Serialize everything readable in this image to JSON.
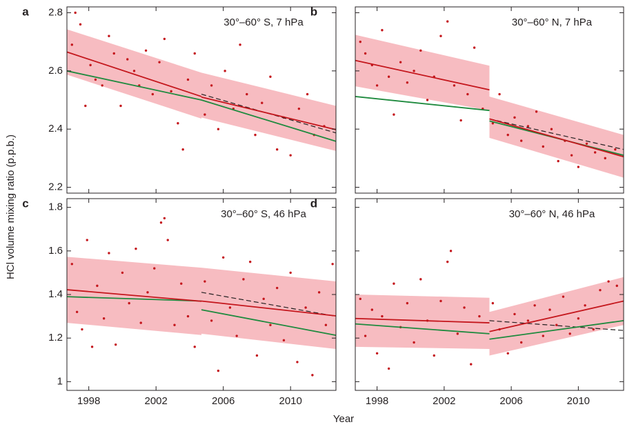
{
  "y_label": "HCl volume mixing ratio (p.p.b.)",
  "x_label": "Year",
  "chart_data": [
    {
      "type": "scatter",
      "panel": "a",
      "title": "30°–60° S, 7 hPa",
      "xlim": [
        1996.7,
        2012.7
      ],
      "xticks": [
        1998,
        2002,
        2006,
        2010
      ],
      "show_xtick_labels": false,
      "ylim": [
        2.18,
        2.82
      ],
      "yticks": [
        2.2,
        2.4,
        2.6,
        2.8
      ],
      "show_ytick_labels": true,
      "point_color": "#c4161c",
      "trend_color": "#c4161c",
      "model_color": "#1e8a3e",
      "band_color": "#f7bcc1",
      "points": {
        "x": [
          1997.0,
          1997.2,
          1997.5,
          1997.8,
          1998.1,
          1998.4,
          1998.8,
          1999.2,
          1999.5,
          1999.9,
          2000.3,
          2000.7,
          2001.0,
          2001.4,
          2001.8,
          2002.2,
          2002.5,
          2002.9,
          2003.3,
          2003.6,
          2003.9,
          2004.3,
          2004.9,
          2005.3,
          2005.7,
          2006.1,
          2006.6,
          2007.0,
          2007.4,
          2007.9,
          2008.3,
          2008.8,
          2009.2,
          2009.6,
          2010.0,
          2010.5,
          2011.0,
          2011.4,
          2012.0
        ],
        "y": [
          2.69,
          2.8,
          2.76,
          2.48,
          2.62,
          2.57,
          2.55,
          2.72,
          2.66,
          2.48,
          2.64,
          2.6,
          2.55,
          2.67,
          2.52,
          2.63,
          2.71,
          2.53,
          2.42,
          2.33,
          2.57,
          2.66,
          2.45,
          2.55,
          2.4,
          2.6,
          2.47,
          2.69,
          2.52,
          2.38,
          2.49,
          2.58,
          2.33,
          2.44,
          2.31,
          2.47,
          2.52,
          2.38,
          2.41
        ]
      },
      "band": [
        {
          "x": [
            1996.7,
            2004.7
          ],
          "high": [
            2.743,
            2.594
          ],
          "low": [
            2.587,
            2.436
          ]
        },
        {
          "x": [
            2004.7,
            2012.7
          ],
          "high": [
            2.594,
            2.48
          ],
          "low": [
            2.44,
            2.325
          ]
        }
      ],
      "trend": [
        {
          "x": [
            1996.7,
            2004.7
          ],
          "values": [
            2.665,
            2.512
          ]
        },
        {
          "x": [
            2004.7,
            2012.7
          ],
          "values": [
            2.51,
            2.398
          ]
        }
      ],
      "model": [
        {
          "x": [
            1996.7,
            2004.7,
            2012.7
          ],
          "values": [
            2.6,
            2.5,
            2.358
          ]
        }
      ],
      "dashed": {
        "x": [
          2004.7,
          2012.7
        ],
        "values": [
          2.52,
          2.387
        ]
      }
    },
    {
      "type": "scatter",
      "panel": "b",
      "title": "30°–60° N, 7 hPa",
      "xlim": [
        1996.7,
        2012.7
      ],
      "xticks": [
        1998,
        2002,
        2006,
        2010
      ],
      "show_xtick_labels": false,
      "ylim": [
        2.18,
        2.82
      ],
      "yticks": [
        2.2,
        2.4,
        2.6,
        2.8
      ],
      "show_ytick_labels": false,
      "point_color": "#c4161c",
      "trend_color": "#c4161c",
      "model_color": "#1e8a3e",
      "band_color": "#f7bcc1",
      "points": {
        "x": [
          1997.0,
          1997.3,
          1997.7,
          1998.0,
          1998.3,
          1998.7,
          1999.0,
          1999.4,
          1999.8,
          2000.2,
          2000.6,
          2001.0,
          2001.4,
          2001.8,
          2002.2,
          2002.6,
          2003.0,
          2003.4,
          2003.8,
          2004.3,
          2004.9,
          2005.3,
          2005.8,
          2006.2,
          2006.6,
          2007.0,
          2007.5,
          2007.9,
          2008.4,
          2008.8,
          2009.2,
          2009.6,
          2010.0,
          2010.5,
          2011.0,
          2011.6,
          2012.2
        ],
        "y": [
          2.7,
          2.66,
          2.62,
          2.55,
          2.74,
          2.58,
          2.45,
          2.63,
          2.56,
          2.6,
          2.67,
          2.5,
          2.58,
          2.72,
          2.77,
          2.55,
          2.43,
          2.52,
          2.68,
          2.47,
          2.42,
          2.52,
          2.38,
          2.44,
          2.36,
          2.41,
          2.46,
          2.34,
          2.4,
          2.29,
          2.36,
          2.31,
          2.27,
          2.35,
          2.32,
          2.3,
          2.33
        ]
      },
      "band": [
        {
          "x": [
            1996.7,
            2004.7
          ],
          "high": [
            2.724,
            2.618
          ],
          "low": [
            2.547,
            2.464
          ]
        },
        {
          "x": [
            2004.7,
            2012.7
          ],
          "high": [
            2.512,
            2.38
          ],
          "low": [
            2.37,
            2.233
          ]
        }
      ],
      "trend": [
        {
          "x": [
            1996.7,
            2004.7
          ],
          "values": [
            2.636,
            2.535
          ]
        },
        {
          "x": [
            2004.7,
            2012.7
          ],
          "values": [
            2.435,
            2.305
          ]
        }
      ],
      "model": [
        {
          "x": [
            1996.7,
            2004.7
          ],
          "values": [
            2.512,
            2.464
          ]
        },
        {
          "x": [
            2004.7,
            2012.7
          ],
          "values": [
            2.428,
            2.31
          ]
        }
      ],
      "dashed": {
        "x": [
          2004.7,
          2012.7
        ],
        "values": [
          2.435,
          2.33
        ]
      }
    },
    {
      "type": "scatter",
      "panel": "c",
      "title": "30°–60° S, 46 hPa",
      "xlim": [
        1996.7,
        2012.7
      ],
      "xticks": [
        1998,
        2002,
        2006,
        2010
      ],
      "show_xtick_labels": true,
      "ylim": [
        0.96,
        1.84
      ],
      "yticks": [
        1.0,
        1.2,
        1.4,
        1.6,
        1.8
      ],
      "show_ytick_labels": true,
      "point_color": "#c4161c",
      "trend_color": "#c4161c",
      "model_color": "#1e8a3e",
      "band_color": "#f7bcc1",
      "points": {
        "x": [
          1997.0,
          1997.3,
          1997.6,
          1997.9,
          1998.2,
          1998.5,
          1998.9,
          1999.2,
          1999.6,
          2000.0,
          2000.4,
          2000.8,
          2001.1,
          2001.5,
          2001.9,
          2002.3,
          2002.5,
          2002.7,
          2003.1,
          2003.5,
          2003.9,
          2004.3,
          2004.9,
          2005.3,
          2005.7,
          2006.0,
          2006.4,
          2006.8,
          2007.2,
          2007.6,
          2008.0,
          2008.4,
          2008.8,
          2009.2,
          2009.6,
          2010.0,
          2010.4,
          2010.9,
          2011.3,
          2011.7,
          2012.1,
          2012.5
        ],
        "y": [
          1.54,
          1.32,
          1.24,
          1.65,
          1.16,
          1.44,
          1.29,
          1.59,
          1.17,
          1.5,
          1.36,
          1.61,
          1.27,
          1.41,
          1.52,
          1.73,
          1.75,
          1.65,
          1.26,
          1.45,
          1.3,
          1.16,
          1.46,
          1.28,
          1.05,
          1.57,
          1.34,
          1.21,
          1.47,
          1.55,
          1.12,
          1.38,
          1.26,
          1.43,
          1.19,
          1.5,
          1.09,
          1.34,
          1.03,
          1.41,
          1.26,
          1.54
        ]
      },
      "band": [
        {
          "x": [
            1996.7,
            2004.7
          ],
          "high": [
            1.573,
            1.523
          ],
          "low": [
            1.27,
            1.214
          ]
        },
        {
          "x": [
            2004.7,
            2012.7
          ],
          "high": [
            1.523,
            1.46
          ],
          "low": [
            1.22,
            1.15
          ]
        }
      ],
      "trend": [
        {
          "x": [
            1996.7,
            2004.7
          ],
          "values": [
            1.422,
            1.369
          ]
        },
        {
          "x": [
            2004.7,
            2012.7
          ],
          "values": [
            1.37,
            1.302
          ]
        }
      ],
      "model": [
        {
          "x": [
            1996.7,
            2004.7
          ],
          "values": [
            1.39,
            1.37
          ]
        },
        {
          "x": [
            2004.7,
            2012.7
          ],
          "values": [
            1.33,
            1.213
          ]
        }
      ],
      "dashed": {
        "x": [
          2004.7,
          2012.7
        ],
        "values": [
          1.41,
          1.3
        ]
      }
    },
    {
      "type": "scatter",
      "panel": "d",
      "title": "30°–60° N, 46 hPa",
      "xlim": [
        1996.7,
        2012.7
      ],
      "xticks": [
        1998,
        2002,
        2006,
        2010
      ],
      "show_xtick_labels": true,
      "ylim": [
        0.96,
        1.84
      ],
      "yticks": [
        1.0,
        1.2,
        1.4,
        1.6,
        1.8
      ],
      "show_ytick_labels": false,
      "point_color": "#c4161c",
      "trend_color": "#c4161c",
      "model_color": "#1e8a3e",
      "band_color": "#f7bcc1",
      "points": {
        "x": [
          1997.0,
          1997.3,
          1997.7,
          1998.0,
          1998.3,
          1998.7,
          1999.0,
          1999.4,
          1999.8,
          2000.2,
          2000.6,
          2001.0,
          2001.4,
          2001.8,
          2002.2,
          2002.4,
          2002.8,
          2003.2,
          2003.6,
          2004.1,
          2004.9,
          2005.3,
          2005.8,
          2006.2,
          2006.6,
          2007.0,
          2007.4,
          2007.9,
          2008.3,
          2008.7,
          2009.1,
          2009.5,
          2010.0,
          2010.4,
          2010.9,
          2011.3,
          2011.8,
          2012.3
        ],
        "y": [
          1.38,
          1.21,
          1.33,
          1.13,
          1.3,
          1.06,
          1.45,
          1.25,
          1.36,
          1.18,
          1.47,
          1.28,
          1.12,
          1.37,
          1.55,
          1.6,
          1.22,
          1.34,
          1.08,
          1.3,
          1.36,
          1.24,
          1.13,
          1.31,
          1.18,
          1.28,
          1.35,
          1.21,
          1.33,
          1.26,
          1.39,
          1.22,
          1.29,
          1.35,
          1.24,
          1.42,
          1.46,
          1.44
        ]
      },
      "band": [
        {
          "x": [
            1996.7,
            2004.7
          ],
          "high": [
            1.4,
            1.385
          ],
          "low": [
            1.16,
            1.15
          ]
        },
        {
          "x": [
            2004.7,
            2012.7
          ],
          "high": [
            1.32,
            1.48
          ],
          "low": [
            1.12,
            1.26
          ]
        }
      ],
      "trend": [
        {
          "x": [
            1996.7,
            2004.7
          ],
          "values": [
            1.29,
            1.27
          ]
        },
        {
          "x": [
            2004.7,
            2012.7
          ],
          "values": [
            1.23,
            1.37
          ]
        }
      ],
      "model": [
        {
          "x": [
            1996.7,
            2004.7
          ],
          "values": [
            1.265,
            1.22
          ]
        },
        {
          "x": [
            2004.7,
            2012.7
          ],
          "values": [
            1.195,
            1.28
          ]
        }
      ],
      "dashed": {
        "x": [
          2004.7,
          2012.7
        ],
        "values": [
          1.28,
          1.235
        ]
      }
    }
  ]
}
